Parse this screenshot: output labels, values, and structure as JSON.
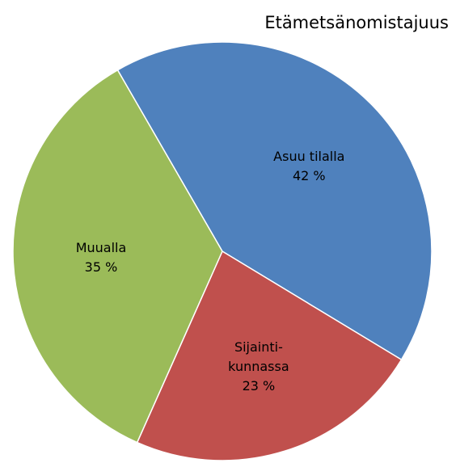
{
  "chart_data": {
    "type": "pie",
    "title": "Etämetsänomistajuus",
    "categories": [
      "Asuu tilalla",
      "Sijainti-\nkunnassa",
      "Muualla"
    ],
    "values": [
      42,
      23,
      35
    ],
    "value_labels": [
      "42 %",
      "23 %",
      "35 %"
    ],
    "colors": [
      "#4f81bd",
      "#c0504d",
      "#9bbb59"
    ]
  }
}
